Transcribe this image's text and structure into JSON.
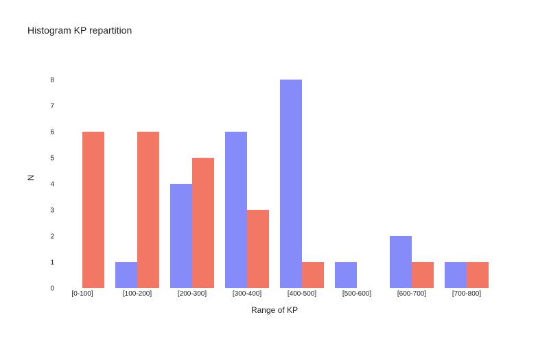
{
  "chart_data": {
    "type": "bar",
    "title": "Histogram KP repartition",
    "xlabel": "Range of KP",
    "ylabel": "N",
    "categories": [
      "[0-100]",
      "[100-200]",
      "[200-300]",
      "[300-400]",
      "[400-500]",
      "[500-600]",
      "[600-700]",
      "[700-800]"
    ],
    "series": [
      {
        "values": [
          0,
          1,
          4,
          6,
          8,
          1,
          2,
          1
        ],
        "color": "#858cf9"
      },
      {
        "values": [
          6,
          6,
          5,
          3,
          1,
          0,
          1,
          1
        ],
        "color": "#f27865"
      }
    ],
    "yticks": [
      "0",
      "1",
      "2",
      "3",
      "4",
      "5",
      "6",
      "7",
      "8"
    ],
    "ylim": [
      0,
      8
    ],
    "grid": false,
    "legend": "none"
  }
}
